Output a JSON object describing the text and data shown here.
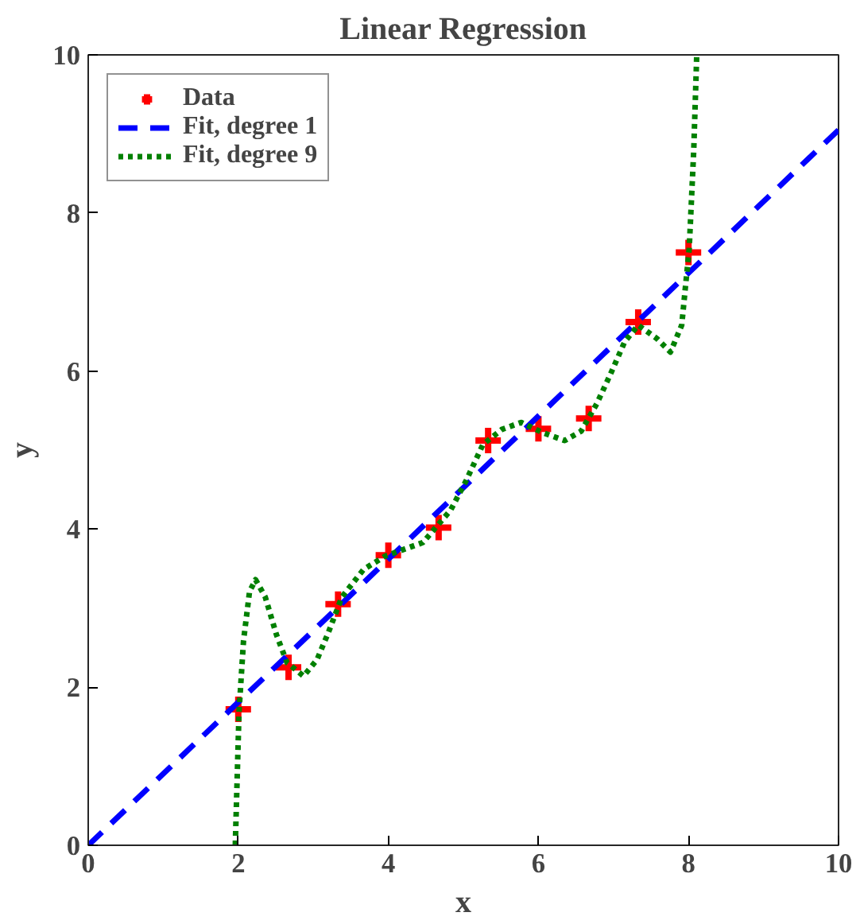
{
  "chart_data": {
    "type": "scatter",
    "title": "Linear Regression",
    "xlabel": "x",
    "ylabel": "y",
    "xlim": [
      0,
      10
    ],
    "ylim": [
      0,
      10
    ],
    "xticks": [
      0,
      2,
      4,
      6,
      8,
      10
    ],
    "yticks": [
      0,
      2,
      4,
      6,
      8,
      10
    ],
    "grid": false,
    "legend": "top left",
    "series": [
      {
        "name": "Data",
        "marker": "cross",
        "color": "#ff0000",
        "x": [
          2,
          2.67,
          3.33,
          4,
          4.67,
          5.33,
          6,
          6.67,
          7.33,
          8
        ],
        "values": [
          1.72,
          2.25,
          3.05,
          3.67,
          4.02,
          5.12,
          5.27,
          5.4,
          6.62,
          7.5
        ]
      },
      {
        "name": "Fit, degree 1",
        "type": "line",
        "line_style": "dashed",
        "color": "#0000ff",
        "x": [
          0,
          10
        ],
        "values": [
          0,
          9.05
        ]
      },
      {
        "name": "Fit, degree 9",
        "type": "line",
        "line_style": "dotted",
        "color": "#008000",
        "x": [
          1.96,
          2.01,
          2.07,
          2.15,
          2.23,
          2.36,
          2.51,
          2.65,
          2.87,
          3.05,
          3.2,
          3.38,
          3.67,
          3.96,
          4.46,
          4.83,
          5.04,
          5.26,
          5.51,
          5.77,
          6.06,
          6.35,
          6.57,
          6.78,
          6.96,
          7.15,
          7.33,
          7.58,
          7.76,
          7.91,
          7.96,
          8.01,
          8.07,
          8.11
        ],
        "values": [
          0,
          1.69,
          2.59,
          3.21,
          3.36,
          3.14,
          2.66,
          2.31,
          2.14,
          2.35,
          2.69,
          3.14,
          3.49,
          3.66,
          3.83,
          4.24,
          4.62,
          5.07,
          5.26,
          5.35,
          5.22,
          5.12,
          5.24,
          5.59,
          5.96,
          6.37,
          6.58,
          6.41,
          6.24,
          6.58,
          7.07,
          7.55,
          8.79,
          10
        ]
      }
    ]
  }
}
